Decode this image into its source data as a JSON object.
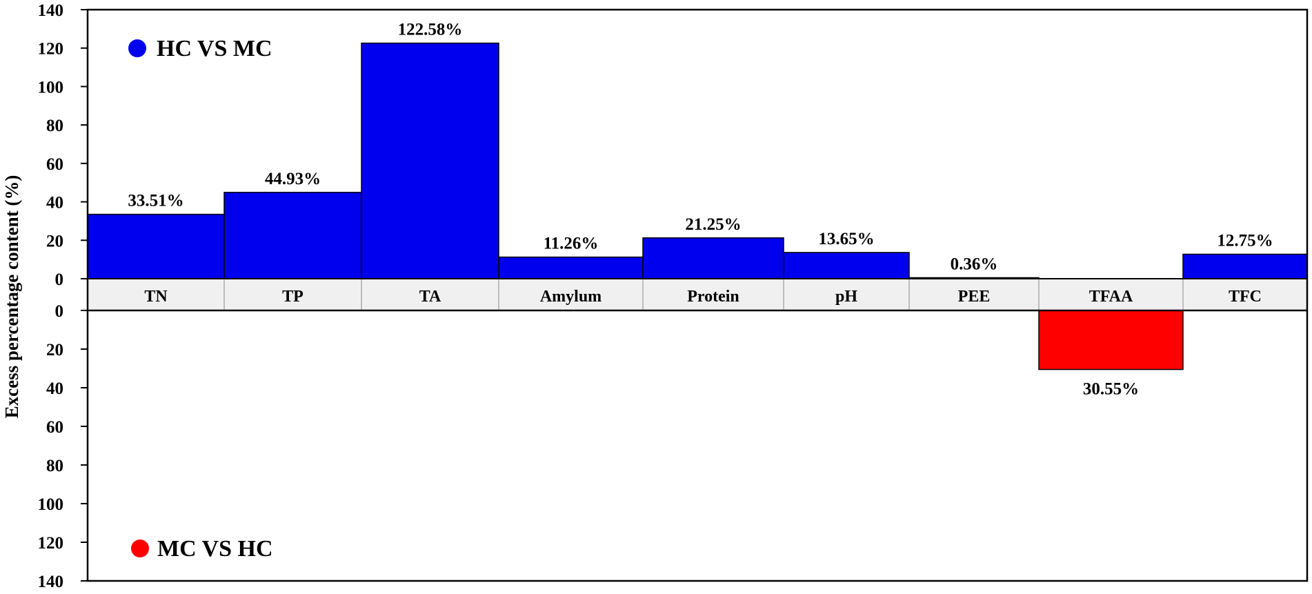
{
  "chart_data": {
    "type": "bar",
    "ylabel": "Excess percentage content (%)",
    "ylim_top": [
      0,
      140
    ],
    "ylim_bottom": [
      0,
      140
    ],
    "yticks_top": [
      "140",
      "120",
      "100",
      "80",
      "60",
      "40",
      "20",
      "0"
    ],
    "yticks_bottom": [
      "0",
      "20",
      "40",
      "60",
      "80",
      "100",
      "120",
      "140"
    ],
    "categories": [
      "TN",
      "TP",
      "TA",
      "Amylum",
      "Protein",
      "pH",
      "PEE",
      "TFAA",
      "TFC"
    ],
    "series": [
      {
        "name": "HC VS MC",
        "color": "#0000ee",
        "values": [
          33.51,
          44.93,
          122.58,
          11.26,
          21.25,
          13.65,
          0.36,
          null,
          12.75
        ],
        "labels": [
          "33.51%",
          "44.93%",
          "122.58%",
          "11.26%",
          "21.25%",
          "13.65%",
          "0.36%",
          null,
          "12.75%"
        ]
      },
      {
        "name": "MC VS HC",
        "color": "#ff0000",
        "values": [
          null,
          null,
          null,
          null,
          null,
          null,
          null,
          30.55,
          null
        ],
        "labels": [
          null,
          null,
          null,
          null,
          null,
          null,
          null,
          "30.55%",
          null
        ]
      }
    ],
    "grid": false
  }
}
